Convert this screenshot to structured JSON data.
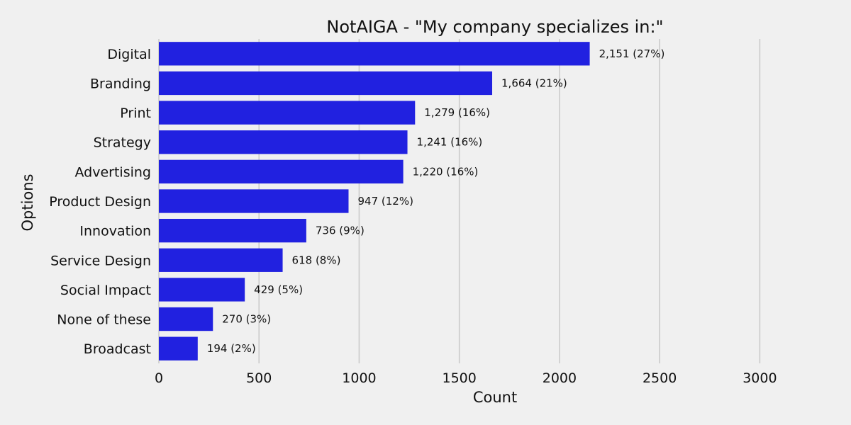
{
  "chart_data": {
    "type": "bar",
    "orientation": "horizontal",
    "title": "NotAIGA - \"My company specializes in:\"",
    "xlabel": "Count",
    "ylabel": "Options",
    "xlim": [
      0,
      3250
    ],
    "xticks": [
      0,
      500,
      1000,
      1500,
      2000,
      2500,
      3000
    ],
    "grid": "vertical",
    "bar_color": "#2121e0",
    "categories": [
      "Digital",
      "Branding",
      "Print",
      "Strategy",
      "Advertising",
      "Product Design",
      "Innovation",
      "Service Design",
      "Social Impact",
      "None of these",
      "Broadcast"
    ],
    "values": [
      2151,
      1664,
      1279,
      1241,
      1220,
      947,
      736,
      618,
      429,
      270,
      194
    ],
    "data_labels": [
      "2,151 (27%)",
      "1,664 (21%)",
      "1,279 (16%)",
      "1,241 (16%)",
      "1,220 (16%)",
      "947 (12%)",
      "736 (9%)",
      "618 (8%)",
      "429 (5%)",
      "270 (3%)",
      "194 (2%)"
    ]
  }
}
